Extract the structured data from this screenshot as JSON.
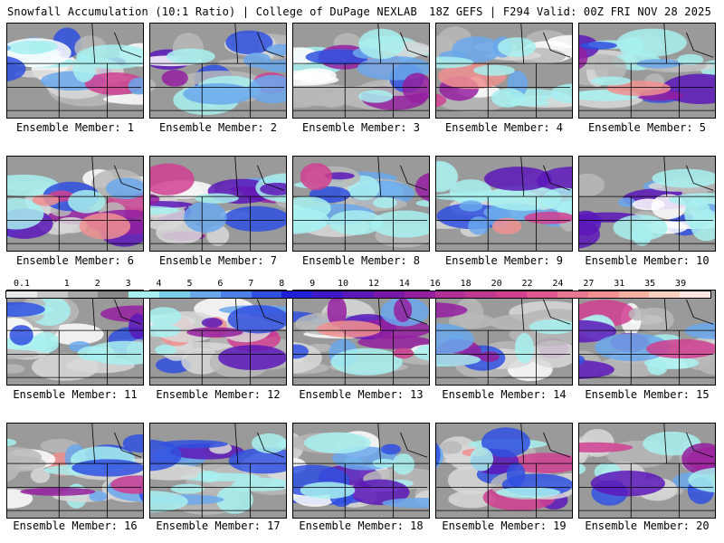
{
  "header": {
    "title": "Snowfall Accumulation (10:1 Ratio) | College of DuPage NEXLAB",
    "run_info": "18Z GEFS | F294 Valid: 00Z FRI NOV 28 2025"
  },
  "panels": [
    {
      "label": "Ensemble Member: 1"
    },
    {
      "label": "Ensemble Member: 2"
    },
    {
      "label": "Ensemble Member: 3"
    },
    {
      "label": "Ensemble Member: 4"
    },
    {
      "label": "Ensemble Member: 5"
    },
    {
      "label": "Ensemble Member: 6"
    },
    {
      "label": "Ensemble Member: 7"
    },
    {
      "label": "Ensemble Member: 8"
    },
    {
      "label": "Ensemble Member: 9"
    },
    {
      "label": "Ensemble Member: 10"
    },
    {
      "label": "Ensemble Member: 11"
    },
    {
      "label": "Ensemble Member: 12"
    },
    {
      "label": "Ensemble Member: 13"
    },
    {
      "label": "Ensemble Member: 14"
    },
    {
      "label": "Ensemble Member: 15"
    },
    {
      "label": "Ensemble Member: 16"
    },
    {
      "label": "Ensemble Member: 17"
    },
    {
      "label": "Ensemble Member: 18"
    },
    {
      "label": "Ensemble Member: 19"
    },
    {
      "label": "Ensemble Member: 20"
    }
  ],
  "color_scale": {
    "labels": [
      "0.1",
      "1",
      "2",
      "3",
      "4",
      "5",
      "6",
      "7",
      "8",
      "9",
      "10",
      "12",
      "14",
      "16",
      "18",
      "20",
      "22",
      "24",
      "27",
      "31",
      "35",
      "39"
    ],
    "colors": [
      "#e8e8e8",
      "#c8c8c8",
      "#a8a8a8",
      "#888888",
      "#a8f0f0",
      "#78d0e8",
      "#6aa8ec",
      "#4c80e8",
      "#3050e0",
      "#2020d8",
      "#4018c8",
      "#5c18b8",
      "#7818a8",
      "#9420a0",
      "#b03098",
      "#c03890",
      "#d04090",
      "#e05890",
      "#e87890",
      "#f09090",
      "#f4b0a0",
      "#f8d0c0",
      "#fce8e0"
    ]
  },
  "colors": {
    "land": "#9a9a9a",
    "border": "#000000"
  }
}
